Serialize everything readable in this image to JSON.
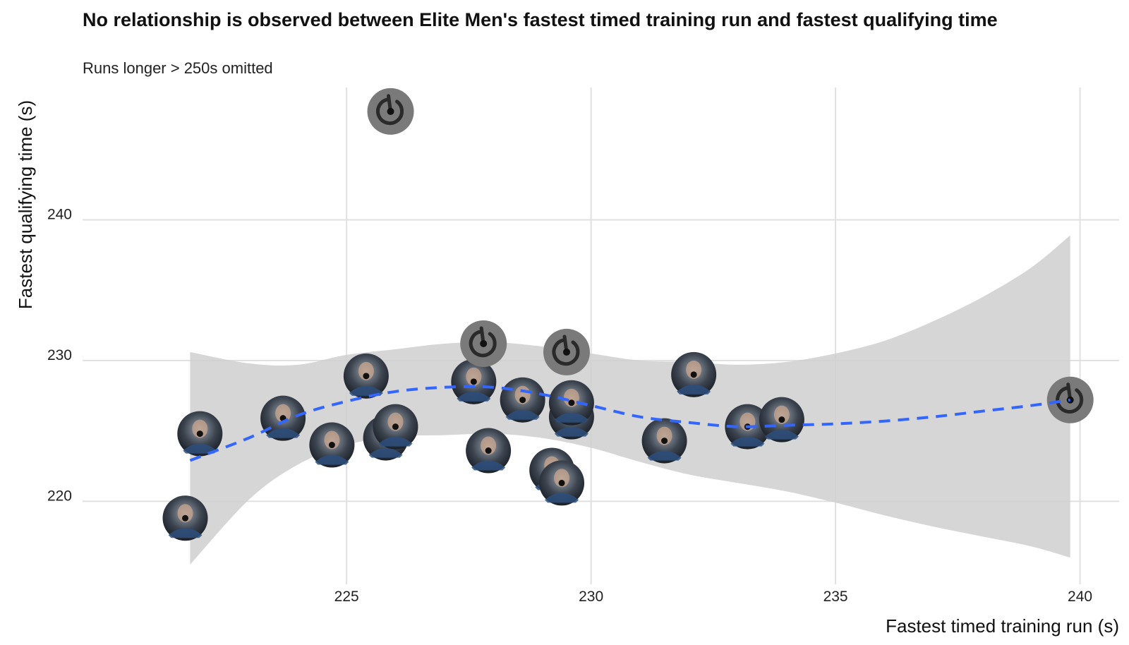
{
  "chart_data": {
    "type": "scatter",
    "title": "No relationship is observed between Elite Men's fastest timed training run and fastest qualifying time",
    "subtitle": "Runs longer > 250s omitted",
    "xlabel": "Fastest timed training run (s)",
    "ylabel": "Fastest qualifying time (s)",
    "xlim": [
      219.6,
      240.8
    ],
    "ylim": [
      214.1,
      249.4
    ],
    "x_ticks": [
      225,
      230,
      235,
      240
    ],
    "y_ticks": [
      220,
      230,
      240
    ],
    "x_tick_labels": [
      "225",
      "230",
      "235",
      "240"
    ],
    "y_tick_labels": [
      "220",
      "230",
      "240"
    ],
    "grid": true,
    "legend": "none",
    "marker": "rider photo (circular)",
    "points": [
      {
        "x": 221.7,
        "y": 218.8,
        "photo": true
      },
      {
        "x": 222.0,
        "y": 224.8,
        "photo": true
      },
      {
        "x": 223.7,
        "y": 225.9,
        "photo": true
      },
      {
        "x": 224.7,
        "y": 224.0,
        "photo": true
      },
      {
        "x": 225.4,
        "y": 228.9,
        "photo": true
      },
      {
        "x": 225.8,
        "y": 224.5,
        "photo": true
      },
      {
        "x": 226.0,
        "y": 225.3,
        "photo": true
      },
      {
        "x": 225.9,
        "y": 247.7,
        "photo": false
      },
      {
        "x": 227.6,
        "y": 228.5,
        "photo": true
      },
      {
        "x": 227.8,
        "y": 231.2,
        "photo": false
      },
      {
        "x": 227.9,
        "y": 223.6,
        "photo": true
      },
      {
        "x": 228.6,
        "y": 227.2,
        "photo": true
      },
      {
        "x": 229.2,
        "y": 222.2,
        "photo": true
      },
      {
        "x": 229.4,
        "y": 221.3,
        "photo": true
      },
      {
        "x": 229.5,
        "y": 230.6,
        "photo": false
      },
      {
        "x": 229.6,
        "y": 226.0,
        "photo": true
      },
      {
        "x": 229.6,
        "y": 227.0,
        "photo": true
      },
      {
        "x": 231.5,
        "y": 224.3,
        "photo": true
      },
      {
        "x": 232.1,
        "y": 229.0,
        "photo": true
      },
      {
        "x": 233.2,
        "y": 225.3,
        "photo": true
      },
      {
        "x": 233.9,
        "y": 225.8,
        "photo": true
      },
      {
        "x": 239.8,
        "y": 227.2,
        "photo": false
      }
    ],
    "smooth": {
      "method": "loess",
      "line_style": "dashed",
      "x": [
        221.8,
        223,
        224,
        225,
        226,
        227,
        228,
        229,
        230,
        231,
        232,
        233,
        234,
        235,
        236,
        237,
        238,
        239,
        239.8
      ],
      "y": [
        222.9,
        224.5,
        226.1,
        227.1,
        227.8,
        228.1,
        228.1,
        227.6,
        226.8,
        226.0,
        225.6,
        225.3,
        225.4,
        225.5,
        225.7,
        226.0,
        226.4,
        226.8,
        227.2
      ],
      "lower": [
        215.5,
        220.1,
        222.6,
        224.0,
        224.6,
        224.7,
        224.8,
        224.5,
        223.8,
        222.8,
        221.9,
        221.3,
        220.7,
        219.9,
        219.0,
        218.2,
        217.5,
        216.8,
        216.0
      ],
      "upper": [
        230.6,
        229.8,
        229.7,
        230.4,
        230.8,
        231.2,
        231.3,
        231.0,
        230.5,
        230.0,
        229.9,
        229.7,
        229.9,
        230.5,
        231.4,
        232.8,
        234.5,
        236.6,
        238.9
      ]
    },
    "colors": {
      "line": "#3366ff",
      "ribbon": "#cfcfcf",
      "grid": "#e0e0e0",
      "placeholder": "#7a7a7a"
    }
  }
}
